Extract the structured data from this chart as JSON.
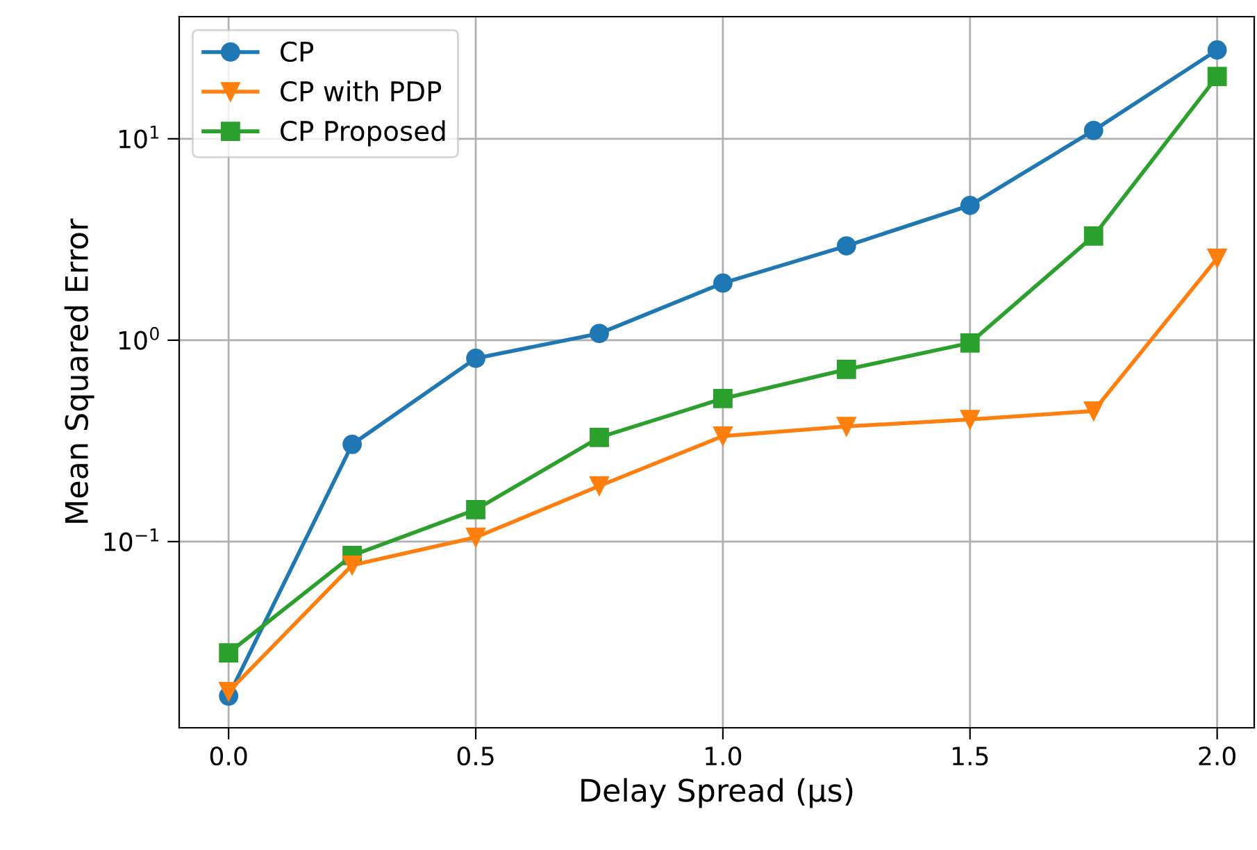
{
  "chart_data": {
    "type": "line",
    "xlabel": "Delay Spread (μs)",
    "ylabel": "Mean Squared Error",
    "x": [
      0,
      0.25,
      0.5,
      0.75,
      1.0,
      1.25,
      1.5,
      1.75,
      2.0
    ],
    "series": [
      {
        "name": "CP",
        "color": "#1f77b4",
        "marker": "circle",
        "values": [
          0.0171,
          0.304,
          0.813,
          1.08,
          1.92,
          2.94,
          4.67,
          11.0,
          27.6
        ]
      },
      {
        "name": "CP with PDP",
        "color": "#ff7f0e",
        "marker": "triangle",
        "values": [
          0.018,
          0.0764,
          0.105,
          0.189,
          0.334,
          0.373,
          0.404,
          0.445,
          2.55
        ]
      },
      {
        "name": "CP Proposed",
        "color": "#2ca02c",
        "marker": "square",
        "values": [
          0.028,
          0.0853,
          0.144,
          0.329,
          0.513,
          0.716,
          0.969,
          3.29,
          20.4
        ]
      }
    ],
    "log": "y",
    "xlim": [
      -0.1,
      2.075
    ],
    "ylim": [
      0.0119,
      40.4
    ],
    "xticks": [
      {
        "value": 0,
        "label": "0.0"
      },
      {
        "value": 0.5,
        "label": "0.5"
      },
      {
        "value": 1,
        "label": "1.0"
      },
      {
        "value": 1.5,
        "label": "1.5"
      },
      {
        "value": 2,
        "label": "2.0"
      }
    ],
    "yticks": [
      {
        "value": 0.1,
        "label": "10$^{−1}$"
      },
      {
        "value": 1,
        "label": "10$^{0}$"
      },
      {
        "value": 10,
        "label": "10$^{1}$"
      }
    ],
    "grid": true,
    "legend": "top left",
    "line_style": "solid"
  }
}
